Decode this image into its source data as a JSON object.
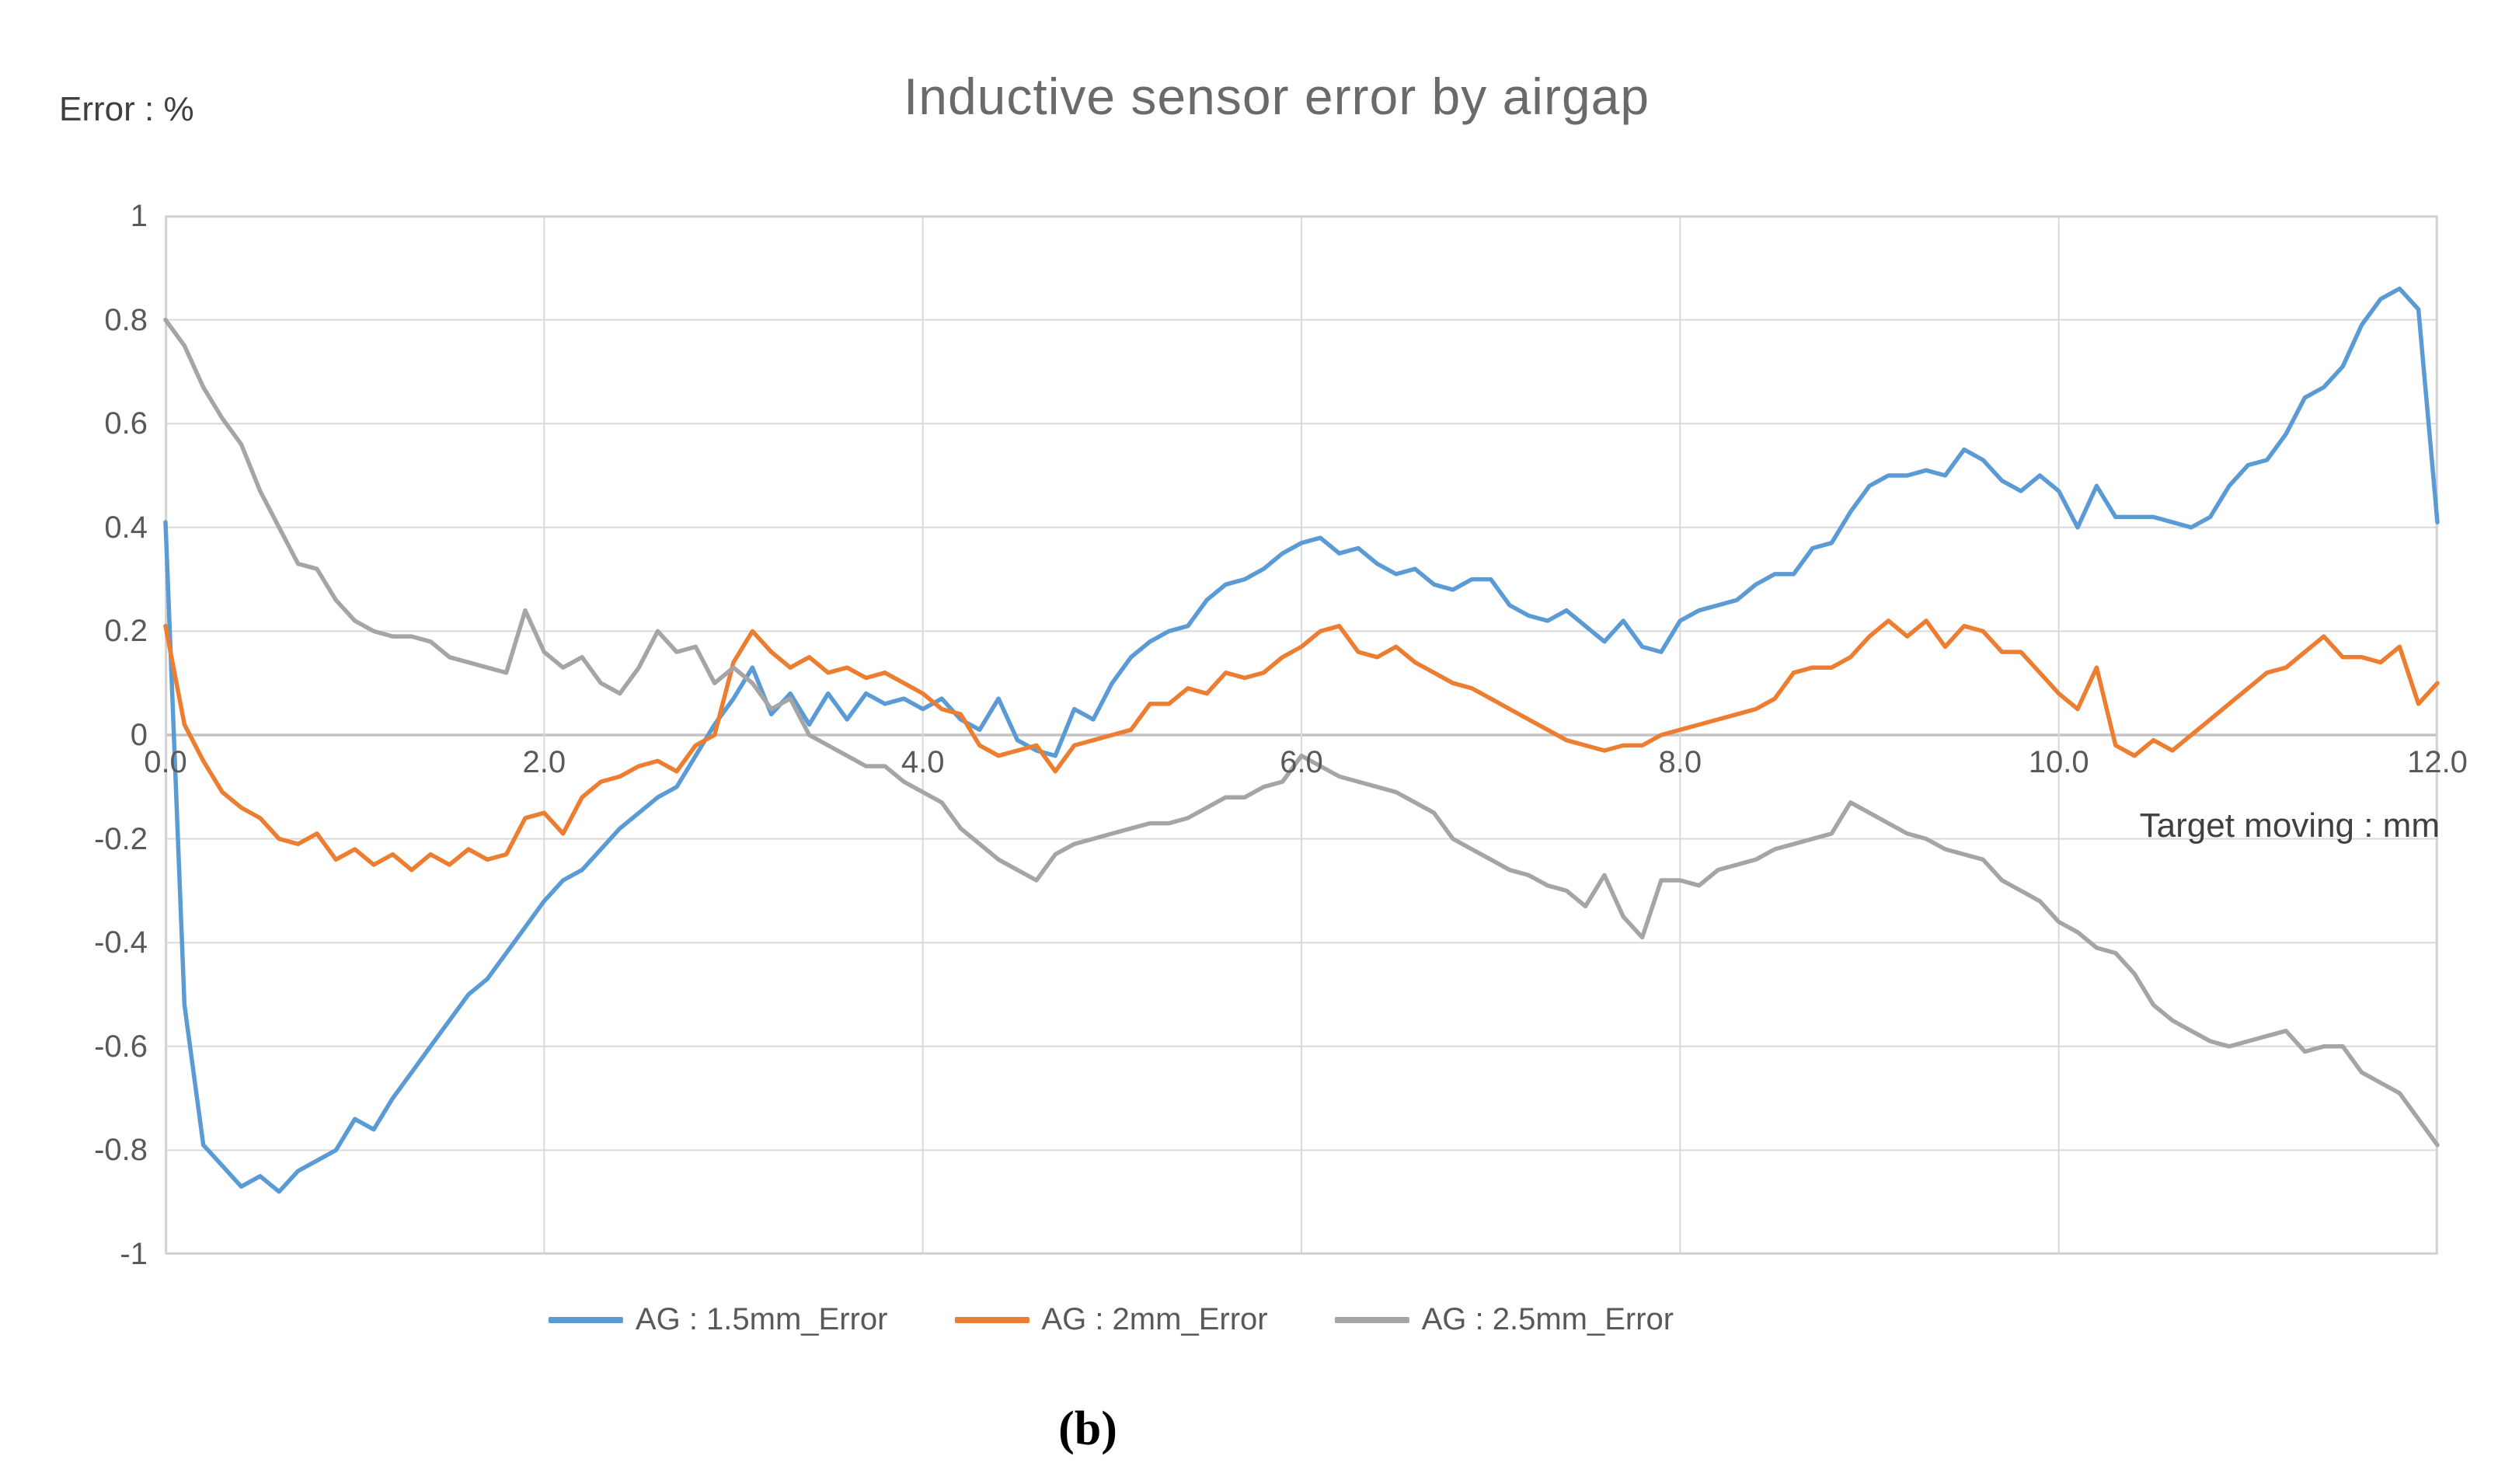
{
  "figure": {
    "title": "Inductive sensor error by airgap",
    "y_axis_title": "Error : %",
    "x_axis_title": "Target moving : mm",
    "caption": "(b)"
  },
  "colors": {
    "series_blue": "#5B9BD5",
    "series_orange": "#ED7D31",
    "series_gray": "#A5A5A5",
    "gridline": "#D9D9D9",
    "zero_line": "#C3C3C3",
    "plot_border": "#D2D2D2",
    "tick_text": "#595959"
  },
  "chart_data": {
    "type": "line",
    "title": "Inductive sensor error by airgap",
    "xlabel": "Target moving : mm",
    "ylabel": "Error : %",
    "xlim": [
      0,
      12
    ],
    "ylim": [
      -1,
      1
    ],
    "grid": true,
    "legend_position": "bottom",
    "x_tick_values": [
      0,
      2,
      4,
      6,
      8,
      10,
      12
    ],
    "x_tick_labels": [
      "0.0",
      "2.0",
      "4.0",
      "6.0",
      "8.0",
      "10.0",
      "12.0"
    ],
    "y_tick_values": [
      1,
      0.8,
      0.6,
      0.4,
      0.2,
      0,
      -0.2,
      -0.4,
      -0.6,
      -0.8,
      -1
    ],
    "y_tick_labels": [
      "1",
      "0.8",
      "0.6",
      "0.4",
      "0.2",
      "0",
      "-0.2",
      "-0.4",
      "-0.6",
      "-0.8",
      "-1"
    ],
    "x_start": 0,
    "x_step": 0.1,
    "series": [
      {
        "name": "AG : 1.5mm_Error",
        "color": "#5B9BD5",
        "values": [
          0.41,
          -0.52,
          -0.79,
          -0.83,
          -0.87,
          -0.85,
          -0.88,
          -0.84,
          -0.82,
          -0.8,
          -0.74,
          -0.76,
          -0.7,
          -0.65,
          -0.6,
          -0.55,
          -0.5,
          -0.47,
          -0.42,
          -0.37,
          -0.32,
          -0.28,
          -0.26,
          -0.22,
          -0.18,
          -0.15,
          -0.12,
          -0.1,
          -0.04,
          0.02,
          0.07,
          0.13,
          0.04,
          0.08,
          0.02,
          0.08,
          0.03,
          0.08,
          0.06,
          0.07,
          0.05,
          0.07,
          0.03,
          0.01,
          0.07,
          -0.01,
          -0.03,
          -0.04,
          0.05,
          0.03,
          0.1,
          0.15,
          0.18,
          0.2,
          0.21,
          0.26,
          0.29,
          0.3,
          0.32,
          0.35,
          0.37,
          0.38,
          0.35,
          0.36,
          0.33,
          0.31,
          0.32,
          0.29,
          0.28,
          0.3,
          0.3,
          0.25,
          0.23,
          0.22,
          0.24,
          0.21,
          0.18,
          0.22,
          0.17,
          0.16,
          0.22,
          0.24,
          0.25,
          0.26,
          0.29,
          0.31,
          0.31,
          0.36,
          0.37,
          0.43,
          0.48,
          0.5,
          0.5,
          0.51,
          0.5,
          0.55,
          0.53,
          0.49,
          0.47,
          0.5,
          0.47,
          0.4,
          0.48,
          0.42,
          0.42,
          0.42,
          0.41,
          0.4,
          0.42,
          0.48,
          0.52,
          0.53,
          0.58,
          0.65,
          0.67,
          0.71,
          0.79,
          0.84,
          0.86,
          0.82,
          0.41
        ]
      },
      {
        "name": "AG : 2mm_Error",
        "color": "#ED7D31",
        "values": [
          0.21,
          0.02,
          -0.05,
          -0.11,
          -0.14,
          -0.16,
          -0.2,
          -0.21,
          -0.19,
          -0.24,
          -0.22,
          -0.25,
          -0.23,
          -0.26,
          -0.23,
          -0.25,
          -0.22,
          -0.24,
          -0.23,
          -0.16,
          -0.15,
          -0.19,
          -0.12,
          -0.09,
          -0.08,
          -0.06,
          -0.05,
          -0.07,
          -0.02,
          0.0,
          0.14,
          0.2,
          0.16,
          0.13,
          0.15,
          0.12,
          0.13,
          0.11,
          0.12,
          0.1,
          0.08,
          0.05,
          0.04,
          -0.02,
          -0.04,
          -0.03,
          -0.02,
          -0.07,
          -0.02,
          -0.01,
          0.0,
          0.01,
          0.06,
          0.06,
          0.09,
          0.08,
          0.12,
          0.11,
          0.12,
          0.15,
          0.17,
          0.2,
          0.21,
          0.16,
          0.15,
          0.17,
          0.14,
          0.12,
          0.1,
          0.09,
          0.07,
          0.05,
          0.03,
          0.01,
          -0.01,
          -0.02,
          -0.03,
          -0.02,
          -0.02,
          0.0,
          0.01,
          0.02,
          0.03,
          0.04,
          0.05,
          0.07,
          0.12,
          0.13,
          0.13,
          0.15,
          0.19,
          0.22,
          0.19,
          0.22,
          0.17,
          0.21,
          0.2,
          0.16,
          0.16,
          0.12,
          0.08,
          0.05,
          0.13,
          -0.02,
          -0.04,
          -0.01,
          -0.03,
          0.0,
          0.03,
          0.06,
          0.09,
          0.12,
          0.13,
          0.16,
          0.19,
          0.15,
          0.15,
          0.14,
          0.17,
          0.06,
          0.1
        ]
      },
      {
        "name": "AG : 2.5mm_Error",
        "color": "#A5A5A5",
        "values": [
          0.8,
          0.75,
          0.67,
          0.61,
          0.56,
          0.47,
          0.4,
          0.33,
          0.32,
          0.26,
          0.22,
          0.2,
          0.19,
          0.19,
          0.18,
          0.15,
          0.14,
          0.13,
          0.12,
          0.24,
          0.16,
          0.13,
          0.15,
          0.1,
          0.08,
          0.13,
          0.2,
          0.16,
          0.17,
          0.1,
          0.13,
          0.1,
          0.05,
          0.07,
          0.0,
          -0.02,
          -0.04,
          -0.06,
          -0.06,
          -0.09,
          -0.11,
          -0.13,
          -0.18,
          -0.21,
          -0.24,
          -0.26,
          -0.28,
          -0.23,
          -0.21,
          -0.2,
          -0.19,
          -0.18,
          -0.17,
          -0.17,
          -0.16,
          -0.14,
          -0.12,
          -0.12,
          -0.1,
          -0.09,
          -0.04,
          -0.06,
          -0.08,
          -0.09,
          -0.1,
          -0.11,
          -0.13,
          -0.15,
          -0.2,
          -0.22,
          -0.24,
          -0.26,
          -0.27,
          -0.29,
          -0.3,
          -0.33,
          -0.27,
          -0.35,
          -0.39,
          -0.28,
          -0.28,
          -0.29,
          -0.26,
          -0.25,
          -0.24,
          -0.22,
          -0.21,
          -0.2,
          -0.19,
          -0.13,
          -0.15,
          -0.17,
          -0.19,
          -0.2,
          -0.22,
          -0.23,
          -0.24,
          -0.28,
          -0.3,
          -0.32,
          -0.36,
          -0.38,
          -0.41,
          -0.42,
          -0.46,
          -0.52,
          -0.55,
          -0.57,
          -0.59,
          -0.6,
          -0.59,
          -0.58,
          -0.57,
          -0.61,
          -0.6,
          -0.6,
          -0.65,
          -0.67,
          -0.69,
          -0.74,
          -0.79
        ]
      }
    ]
  },
  "legend": {
    "items": [
      {
        "label": "AG : 1.5mm_Error"
      },
      {
        "label": "AG : 2mm_Error"
      },
      {
        "label": "AG : 2.5mm_Error"
      }
    ]
  }
}
